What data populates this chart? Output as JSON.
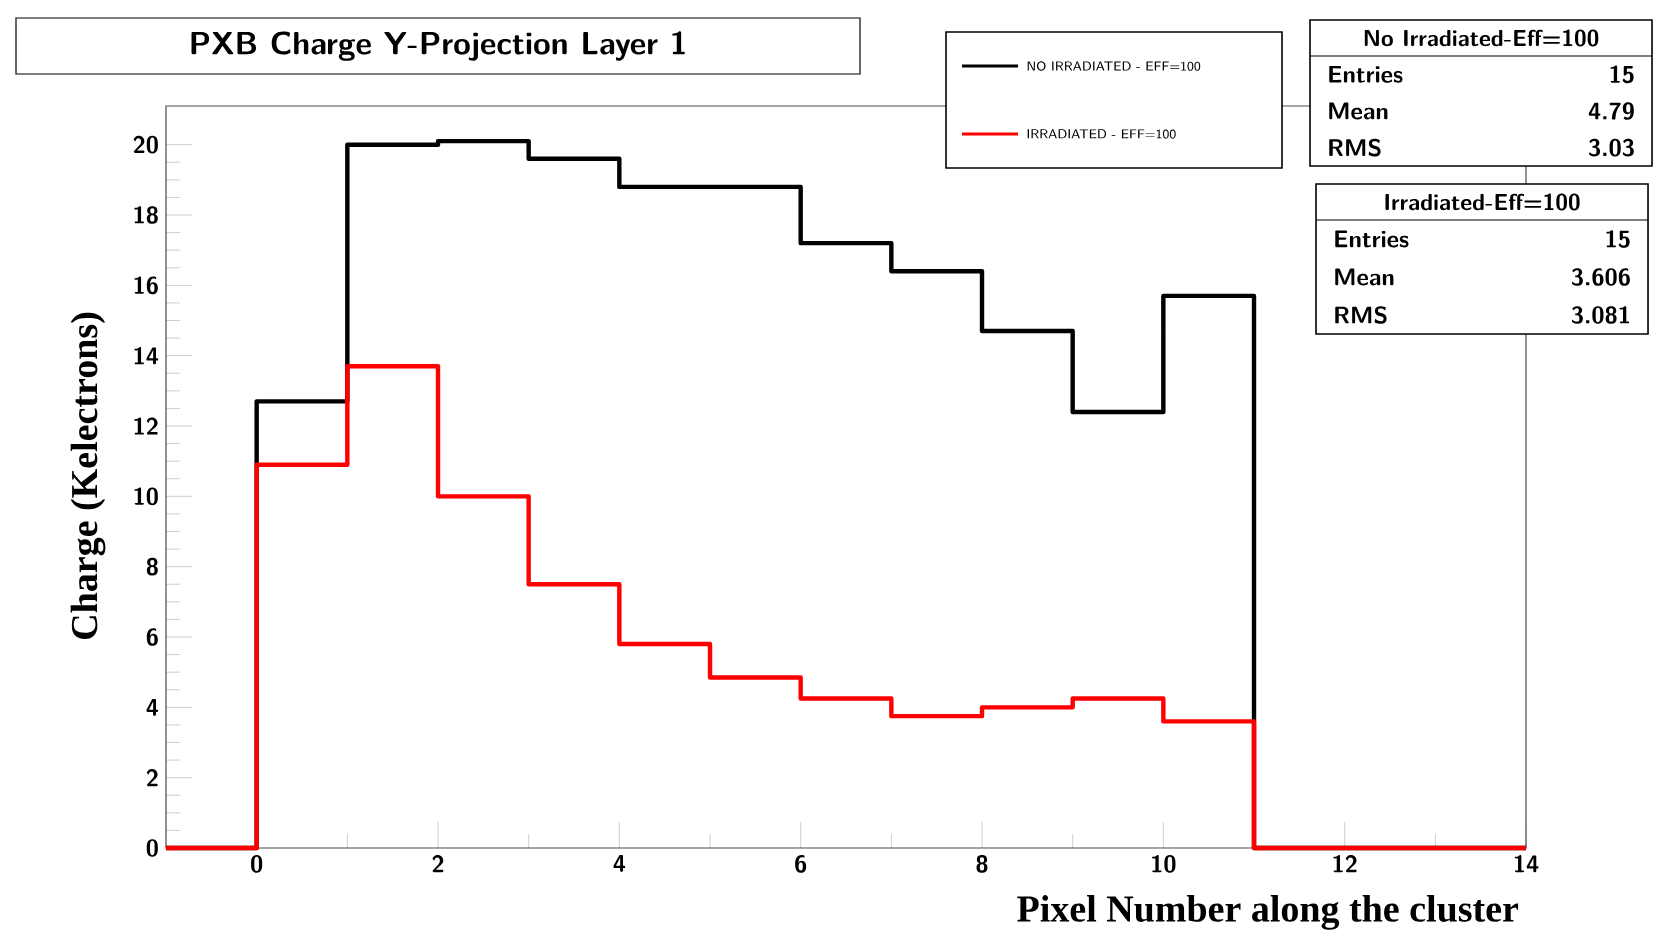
{
  "chart_data": {
    "type": "histogram",
    "title": "PXB Charge Y-Projection Layer 1",
    "xlabel": "Pixel Number along the cluster",
    "ylabel": "Charge (Kelectrons)",
    "bins": [
      -1,
      0,
      1,
      2,
      3,
      4,
      5,
      6,
      7,
      8,
      9,
      10,
      11,
      12,
      13,
      14
    ],
    "series": [
      {
        "name": "NO IRRADIATED - EFF=100",
        "color": "#000000",
        "values": [
          0,
          12.7,
          20.0,
          20.1,
          19.6,
          18.8,
          18.8,
          17.2,
          16.4,
          14.7,
          12.4,
          15.7,
          0,
          0,
          0
        ]
      },
      {
        "name": "IRRADIATED - EFF=100",
        "color": "#ff0000",
        "values": [
          0,
          10.9,
          13.7,
          10.0,
          7.5,
          5.8,
          4.85,
          4.25,
          3.75,
          4.0,
          4.25,
          3.6,
          0,
          0,
          0
        ]
      }
    ],
    "xlim": [
      -1,
      14
    ],
    "ylim": [
      0,
      21.1
    ],
    "xticks": [
      0,
      2,
      4,
      6,
      8,
      10,
      12,
      14
    ],
    "yticks": [
      0,
      2,
      4,
      6,
      8,
      10,
      12,
      14,
      16,
      18,
      20
    ],
    "legend": "top right",
    "annotations": [
      "No Irradiated-Eff=100",
      "Entries",
      "15",
      "Mean",
      "4.79",
      "RMS",
      "3.03",
      "Irradiated-Eff=100",
      "Entries",
      "15",
      "Mean",
      "3.606",
      "RMS",
      "3.081"
    ]
  }
}
